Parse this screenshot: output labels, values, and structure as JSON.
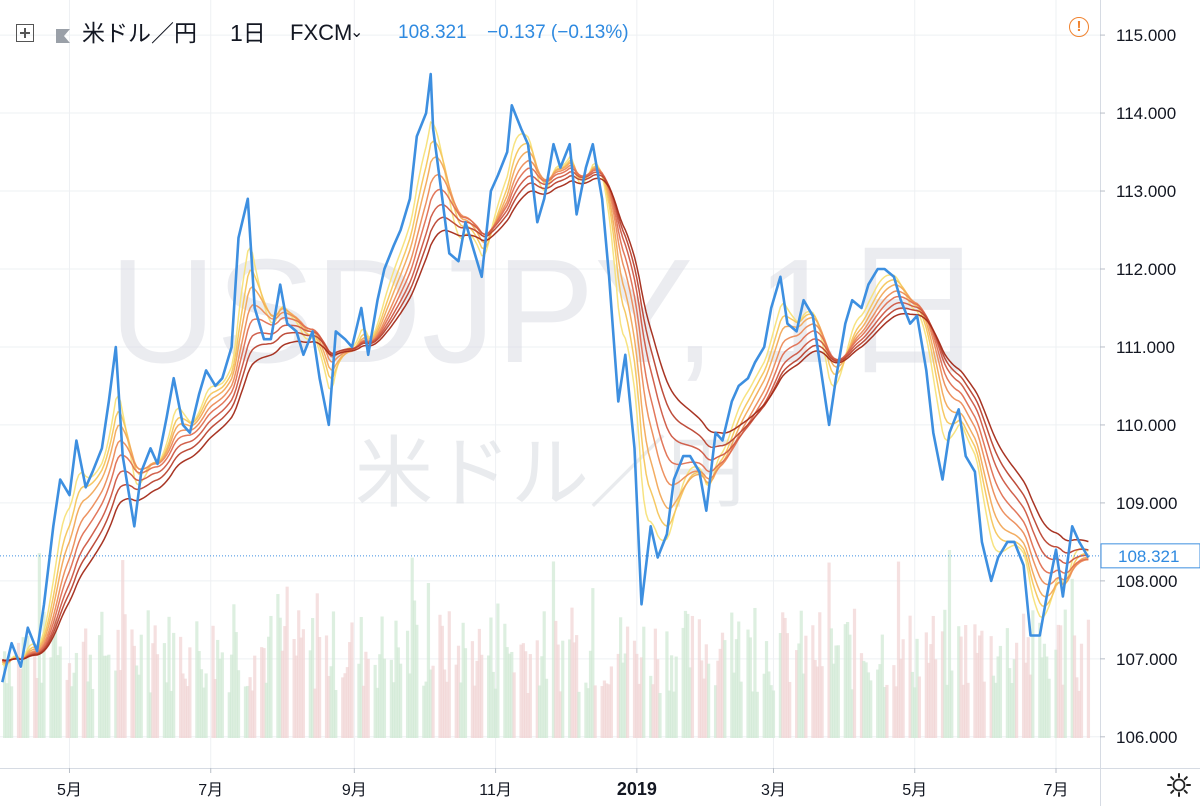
{
  "header": {
    "symbol": "米ドル／円",
    "interval": "1日",
    "exchange": "FXCM",
    "price": "108.321",
    "change": "−0.137 (−0.13%)"
  },
  "watermark": {
    "line1": "USDJPY, 1日",
    "line2": "米ドル／円"
  },
  "icons": {
    "add": "add-symbol-icon",
    "flag": "flag-icon",
    "alert": "alert-icon",
    "settings": "settings-gear-icon"
  },
  "colors": {
    "price_line": "#3d8fe0",
    "accent": "#2f8ae0",
    "alert": "#f0832f",
    "ribbon_start": "#f7e27a",
    "ribbon_end": "#a32a18"
  },
  "chart_data": {
    "type": "line",
    "title": "",
    "xlabel": "",
    "ylabel": "",
    "ylim": [
      105.6,
      115.45
    ],
    "yticks": [
      "115.000",
      "114.000",
      "113.000",
      "112.000",
      "111.000",
      "110.000",
      "109.000",
      "108.000",
      "107.000",
      "106.000"
    ],
    "xtick_labels": [
      {
        "label": "5月",
        "date": "2018-05-01",
        "bold": false
      },
      {
        "label": "7月",
        "date": "2018-07-01",
        "bold": false
      },
      {
        "label": "9月",
        "date": "2018-09-01",
        "bold": false
      },
      {
        "label": "11月",
        "date": "2018-11-01",
        "bold": false
      },
      {
        "label": "2019",
        "date": "2019-01-01",
        "bold": true
      },
      {
        "label": "3月",
        "date": "2019-03-01",
        "bold": false
      },
      {
        "label": "5月",
        "date": "2019-05-01",
        "bold": false
      },
      {
        "label": "7月",
        "date": "2019-07-01",
        "bold": false
      }
    ],
    "last_price": 108.321,
    "last_price_label": "108.321",
    "grid": true,
    "series": [
      {
        "type": "line",
        "color": "#3d8fe0",
        "points": [
          [
            "2018-04-02",
            106.7
          ],
          [
            "2018-04-06",
            107.2
          ],
          [
            "2018-04-10",
            106.9
          ],
          [
            "2018-04-13",
            107.4
          ],
          [
            "2018-04-17",
            107.1
          ],
          [
            "2018-04-20",
            107.7
          ],
          [
            "2018-04-24",
            108.7
          ],
          [
            "2018-04-27",
            109.3
          ],
          [
            "2018-05-01",
            109.1
          ],
          [
            "2018-05-04",
            109.8
          ],
          [
            "2018-05-08",
            109.2
          ],
          [
            "2018-05-11",
            109.4
          ],
          [
            "2018-05-15",
            109.7
          ],
          [
            "2018-05-18",
            110.3
          ],
          [
            "2018-05-21",
            111.0
          ],
          [
            "2018-05-24",
            109.6
          ],
          [
            "2018-05-29",
            108.7
          ],
          [
            "2018-06-01",
            109.4
          ],
          [
            "2018-06-05",
            109.7
          ],
          [
            "2018-06-08",
            109.5
          ],
          [
            "2018-06-12",
            110.1
          ],
          [
            "2018-06-15",
            110.6
          ],
          [
            "2018-06-19",
            110.0
          ],
          [
            "2018-06-22",
            109.9
          ],
          [
            "2018-06-26",
            110.4
          ],
          [
            "2018-06-29",
            110.7
          ],
          [
            "2018-07-03",
            110.5
          ],
          [
            "2018-07-06",
            110.6
          ],
          [
            "2018-07-10",
            111.0
          ],
          [
            "2018-07-13",
            112.4
          ],
          [
            "2018-07-17",
            112.9
          ],
          [
            "2018-07-20",
            111.5
          ],
          [
            "2018-07-24",
            111.1
          ],
          [
            "2018-07-27",
            111.1
          ],
          [
            "2018-07-31",
            111.8
          ],
          [
            "2018-08-03",
            111.3
          ],
          [
            "2018-08-07",
            111.2
          ],
          [
            "2018-08-10",
            110.9
          ],
          [
            "2018-08-14",
            111.2
          ],
          [
            "2018-08-17",
            110.6
          ],
          [
            "2018-08-21",
            110.0
          ],
          [
            "2018-08-24",
            111.2
          ],
          [
            "2018-08-28",
            111.1
          ],
          [
            "2018-08-31",
            111.0
          ],
          [
            "2018-09-04",
            111.5
          ],
          [
            "2018-09-07",
            110.9
          ],
          [
            "2018-09-11",
            111.6
          ],
          [
            "2018-09-14",
            112.0
          ],
          [
            "2018-09-18",
            112.3
          ],
          [
            "2018-09-21",
            112.5
          ],
          [
            "2018-09-25",
            112.9
          ],
          [
            "2018-09-28",
            113.7
          ],
          [
            "2018-10-02",
            114.0
          ],
          [
            "2018-10-04",
            114.5
          ],
          [
            "2018-10-05",
            113.8
          ],
          [
            "2018-10-09",
            112.9
          ],
          [
            "2018-10-12",
            112.2
          ],
          [
            "2018-10-16",
            112.1
          ],
          [
            "2018-10-19",
            112.6
          ],
          [
            "2018-10-23",
            112.2
          ],
          [
            "2018-10-26",
            111.9
          ],
          [
            "2018-10-30",
            113.0
          ],
          [
            "2018-11-02",
            113.2
          ],
          [
            "2018-11-06",
            113.5
          ],
          [
            "2018-11-08",
            114.1
          ],
          [
            "2018-11-12",
            113.8
          ],
          [
            "2018-11-15",
            113.6
          ],
          [
            "2018-11-19",
            112.6
          ],
          [
            "2018-11-22",
            112.9
          ],
          [
            "2018-11-26",
            113.6
          ],
          [
            "2018-11-29",
            113.3
          ],
          [
            "2018-12-03",
            113.6
          ],
          [
            "2018-12-06",
            112.7
          ],
          [
            "2018-12-10",
            113.3
          ],
          [
            "2018-12-13",
            113.6
          ],
          [
            "2018-12-17",
            112.9
          ],
          [
            "2018-12-20",
            111.9
          ],
          [
            "2018-12-24",
            110.3
          ],
          [
            "2018-12-27",
            110.9
          ],
          [
            "2018-12-31",
            109.7
          ],
          [
            "2019-01-03",
            107.7
          ],
          [
            "2019-01-07",
            108.7
          ],
          [
            "2019-01-10",
            108.3
          ],
          [
            "2019-01-14",
            108.6
          ],
          [
            "2019-01-17",
            109.3
          ],
          [
            "2019-01-21",
            109.6
          ],
          [
            "2019-01-24",
            109.6
          ],
          [
            "2019-01-28",
            109.4
          ],
          [
            "2019-01-31",
            108.9
          ],
          [
            "2019-02-04",
            109.9
          ],
          [
            "2019-02-07",
            109.8
          ],
          [
            "2019-02-11",
            110.3
          ],
          [
            "2019-02-14",
            110.5
          ],
          [
            "2019-02-18",
            110.6
          ],
          [
            "2019-02-21",
            110.8
          ],
          [
            "2019-02-25",
            111.0
          ],
          [
            "2019-02-28",
            111.5
          ],
          [
            "2019-03-04",
            111.9
          ],
          [
            "2019-03-07",
            111.3
          ],
          [
            "2019-03-11",
            111.2
          ],
          [
            "2019-03-14",
            111.6
          ],
          [
            "2019-03-18",
            111.4
          ],
          [
            "2019-03-21",
            110.8
          ],
          [
            "2019-03-25",
            110.0
          ],
          [
            "2019-03-28",
            110.6
          ],
          [
            "2019-04-01",
            111.3
          ],
          [
            "2019-04-04",
            111.6
          ],
          [
            "2019-04-08",
            111.5
          ],
          [
            "2019-04-11",
            111.8
          ],
          [
            "2019-04-15",
            112.0
          ],
          [
            "2019-04-18",
            112.0
          ],
          [
            "2019-04-22",
            111.9
          ],
          [
            "2019-04-25",
            111.6
          ],
          [
            "2019-04-29",
            111.3
          ],
          [
            "2019-05-02",
            111.4
          ],
          [
            "2019-05-06",
            110.7
          ],
          [
            "2019-05-09",
            109.9
          ],
          [
            "2019-05-13",
            109.3
          ],
          [
            "2019-05-16",
            109.9
          ],
          [
            "2019-05-20",
            110.2
          ],
          [
            "2019-05-23",
            109.6
          ],
          [
            "2019-05-27",
            109.4
          ],
          [
            "2019-05-30",
            108.5
          ],
          [
            "2019-06-03",
            108.0
          ],
          [
            "2019-06-06",
            108.3
          ],
          [
            "2019-06-10",
            108.5
          ],
          [
            "2019-06-13",
            108.5
          ],
          [
            "2019-06-17",
            108.2
          ],
          [
            "2019-06-20",
            107.3
          ],
          [
            "2019-06-24",
            107.3
          ],
          [
            "2019-06-27",
            107.8
          ],
          [
            "2019-07-01",
            108.4
          ],
          [
            "2019-07-04",
            107.8
          ],
          [
            "2019-07-08",
            108.7
          ],
          [
            "2019-07-11",
            108.5
          ],
          [
            "2019-07-15",
            108.3
          ]
        ]
      }
    ]
  }
}
